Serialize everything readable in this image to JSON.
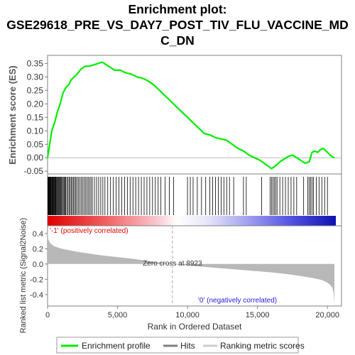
{
  "title_lines": [
    "Enrichment plot:",
    "GSE29618_PRE_VS_DAY7_POST_TIV_FLU_VACCINE_MD",
    "C_DN"
  ],
  "chart_data": {
    "type": "line",
    "title": "Enrichment plot: GSE29618_PRE_VS_DAY7_POST_TIV_FLU_VACCINE_MDC_DN",
    "xlabel": "Rank in Ordered Dataset",
    "xlim": [
      0,
      20600
    ],
    "x_ticks": [
      0,
      5000,
      10000,
      15000,
      20000
    ],
    "x_tick_labels": [
      "0",
      "5,000",
      "10,000",
      "15,000",
      "20,000"
    ],
    "es_panel": {
      "ylabel": "Enrichment score (ES)",
      "ylim": [
        -0.06,
        0.38
      ],
      "y_ticks": [
        -0.05,
        0.0,
        0.05,
        0.1,
        0.15,
        0.2,
        0.25,
        0.3,
        0.35
      ],
      "y_tick_labels": [
        "-0.05",
        "0.00",
        "0.05",
        "0.10",
        "0.15",
        "0.20",
        "0.25",
        "0.30",
        "0.35"
      ],
      "series": [
        {
          "name": "Enrichment profile",
          "color": "#00ee00",
          "x": [
            0,
            150,
            300,
            500,
            700,
            900,
            1100,
            1300,
            1500,
            1700,
            1900,
            2100,
            2400,
            2700,
            3000,
            3300,
            3600,
            3900,
            4200,
            4500,
            4800,
            5200,
            5600,
            6000,
            6400,
            6800,
            7200,
            7600,
            8000,
            8400,
            8800,
            9200,
            9600,
            10000,
            10400,
            10800,
            11200,
            11600,
            12000,
            12400,
            12800,
            13200,
            13600,
            14000,
            14400,
            14800,
            15200,
            15600,
            16000,
            16300,
            16600,
            16900,
            17200,
            17500,
            17800,
            18100,
            18400,
            18700,
            18900,
            19100,
            19300,
            19500,
            19700,
            19900,
            20100,
            20300,
            20500
          ],
          "y": [
            0.0,
            0.05,
            0.1,
            0.13,
            0.17,
            0.2,
            0.24,
            0.26,
            0.27,
            0.29,
            0.3,
            0.31,
            0.33,
            0.34,
            0.34,
            0.345,
            0.35,
            0.355,
            0.345,
            0.335,
            0.325,
            0.325,
            0.315,
            0.31,
            0.3,
            0.295,
            0.285,
            0.27,
            0.25,
            0.23,
            0.21,
            0.19,
            0.17,
            0.15,
            0.13,
            0.11,
            0.09,
            0.085,
            0.075,
            0.07,
            0.065,
            0.05,
            0.035,
            0.025,
            0.01,
            0.0,
            -0.01,
            -0.025,
            -0.04,
            -0.03,
            -0.015,
            -0.005,
            0.005,
            0.01,
            0.0,
            -0.01,
            -0.02,
            -0.015,
            0.02,
            0.025,
            0.02,
            0.03,
            0.035,
            0.025,
            0.015,
            0.005,
            0.0
          ]
        }
      ]
    },
    "hits_panel": {
      "legend_name": "Hits",
      "ranks": [
        30,
        60,
        90,
        120,
        150,
        180,
        210,
        240,
        280,
        320,
        360,
        400,
        440,
        480,
        520,
        560,
        600,
        650,
        700,
        750,
        800,
        850,
        900,
        950,
        1000,
        1060,
        1120,
        1180,
        1240,
        1300,
        1380,
        1460,
        1540,
        1620,
        1700,
        1780,
        1860,
        1940,
        2020,
        2100,
        2200,
        2300,
        2400,
        2500,
        2600,
        2700,
        2800,
        2900,
        3000,
        3100,
        3200,
        3350,
        3500,
        3650,
        3800,
        3950,
        4100,
        4300,
        4500,
        4700,
        4900,
        5100,
        5300,
        5500,
        5700,
        5900,
        6100,
        6300,
        6500,
        6700,
        6900,
        7100,
        7300,
        7500,
        7700,
        7900,
        8100,
        8400,
        8700,
        9000,
        10000,
        10200,
        10400,
        10700,
        11000,
        11300,
        11600,
        11800,
        12000,
        12200,
        12400,
        12600,
        12800,
        13000,
        13300,
        14000,
        14200,
        15300,
        15900,
        16000,
        16100,
        16200,
        16300,
        16400,
        16600,
        16800,
        17000,
        17200,
        17400,
        17600,
        17800,
        18300,
        18600,
        18700,
        18800,
        18900,
        19000,
        19200,
        19400,
        19600,
        19800,
        20000
      ]
    },
    "metric_panel": {
      "ylabel": "Ranked list metric (Signal2Noise)",
      "legend_name": "Ranking metric scores",
      "ylim": [
        -0.55,
        0.5
      ],
      "y_ticks": [
        -0.4,
        -0.2,
        0.0,
        0.2,
        0.4
      ],
      "y_tick_labels": [
        "-0.4",
        "-0.2",
        "0.0",
        "0.2",
        "0.4"
      ],
      "x": [
        0,
        50,
        200,
        500,
        1000,
        2000,
        3000,
        4000,
        5000,
        6000,
        7000,
        8000,
        8923,
        10000,
        11000,
        12000,
        13000,
        14000,
        15000,
        16000,
        17000,
        18000,
        18500,
        19000,
        19500,
        19800,
        20000,
        20200,
        20350,
        20450,
        20500
      ],
      "y": [
        0.45,
        0.32,
        0.27,
        0.23,
        0.2,
        0.165,
        0.135,
        0.11,
        0.09,
        0.07,
        0.045,
        0.02,
        0.0,
        -0.02,
        -0.035,
        -0.05,
        -0.065,
        -0.08,
        -0.095,
        -0.11,
        -0.13,
        -0.155,
        -0.17,
        -0.185,
        -0.205,
        -0.225,
        -0.245,
        -0.275,
        -0.31,
        -0.38,
        -0.52
      ],
      "zero_cross_label": "Zero cross at 8923",
      "zero_cross": 8923,
      "pos_label": "'-1' (positively correlated)",
      "neg_label": "'0' (negatively correlated)"
    },
    "legend": [
      {
        "name": "Enrichment profile",
        "color": "#00ee00"
      },
      {
        "name": "Hits",
        "color": "#808080"
      },
      {
        "name": "Ranking metric scores",
        "color": "#cccccc"
      }
    ],
    "grid": false
  }
}
